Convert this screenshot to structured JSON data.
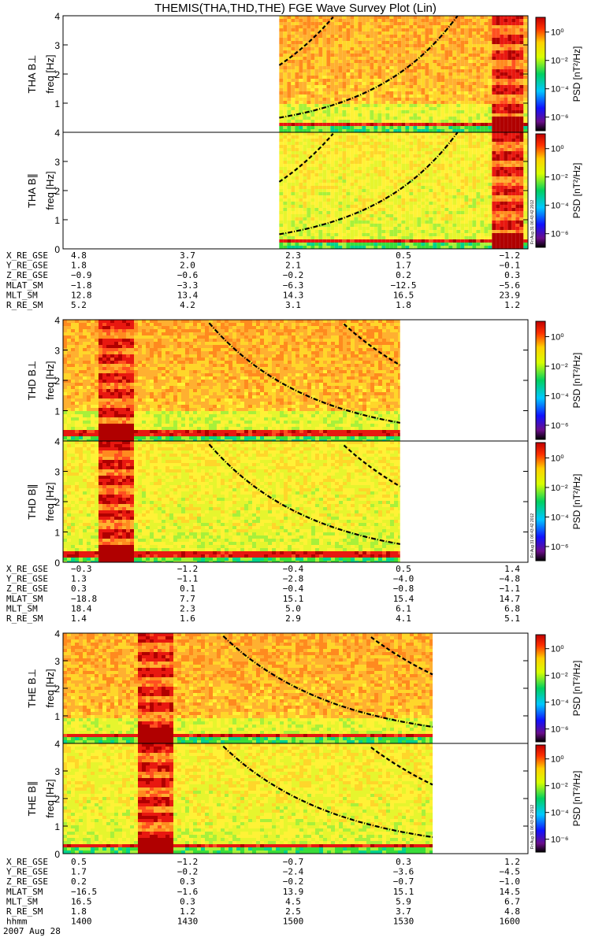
{
  "title": "THEMIS(THA,THD,THE) FGE Wave Survey Plot (Lin)",
  "colorbar": {
    "label": "PSD [nT²/Hz]",
    "ticks": [
      "10⁰",
      "10⁻²",
      "10⁻⁴",
      "10⁻⁶"
    ]
  },
  "ylabel_freq": "freq [Hz]",
  "freq_ticks": [
    "0",
    "1",
    "2",
    "3",
    "4"
  ],
  "stamp": "Fri Aug 31 06:43:42 2012",
  "footer": {
    "time_row_label": "hhmm",
    "time_ticks": [
      "1400",
      "1430",
      "1500",
      "1530",
      "1600"
    ],
    "date": "2007 Aug 28"
  },
  "chart_data": [
    {
      "probe": "THA",
      "panels": [
        {
          "label": "THA B⊥",
          "type": "heatmap",
          "ylim": [
            0,
            4
          ],
          "ylabel": "freq [Hz]",
          "data_start_frac": 0.465,
          "data_end_frac": 1.0
        },
        {
          "label": "THA B∥",
          "type": "heatmap",
          "ylim": [
            0,
            4
          ],
          "ylabel": "freq [Hz]",
          "data_start_frac": 0.465,
          "data_end_frac": 1.0
        }
      ],
      "ephemeris": [
        {
          "label": "X_RE_GSE",
          "values": [
            "4.8",
            "3.7",
            "2.3",
            "0.5",
            "−1.2"
          ]
        },
        {
          "label": "Y_RE_GSE",
          "values": [
            "1.8",
            "2.0",
            "2.1",
            "1.7",
            "−0.1"
          ]
        },
        {
          "label": "Z_RE_GSE",
          "values": [
            "−0.9",
            "−0.6",
            "−0.2",
            "0.2",
            "0.3"
          ]
        },
        {
          "label": "MLAT_SM",
          "values": [
            "−1.8",
            "−3.3",
            "−6.3",
            "−12.5",
            "−5.6"
          ]
        },
        {
          "label": "MLT_SM",
          "values": [
            "12.8",
            "13.4",
            "14.3",
            "16.5",
            "23.9"
          ]
        },
        {
          "label": "R_RE_SM",
          "values": [
            "5.2",
            "4.2",
            "3.1",
            "1.8",
            "1.2"
          ]
        }
      ]
    },
    {
      "probe": "THD",
      "panels": [
        {
          "label": "THD B⊥",
          "type": "heatmap",
          "ylim": [
            0,
            4
          ],
          "ylabel": "freq [Hz]",
          "data_start_frac": 0.0,
          "data_end_frac": 0.725
        },
        {
          "label": "THD B∥",
          "type": "heatmap",
          "ylim": [
            0,
            4
          ],
          "ylabel": "freq [Hz]",
          "data_start_frac": 0.0,
          "data_end_frac": 0.725
        }
      ],
      "ephemeris": [
        {
          "label": "X_RE_GSE",
          "values": [
            "−0.3",
            "−1.2",
            "−0.4",
            "0.5",
            "1.4"
          ]
        },
        {
          "label": "Y_RE_GSE",
          "values": [
            "1.3",
            "−1.1",
            "−2.8",
            "−4.0",
            "−4.8"
          ]
        },
        {
          "label": "Z_RE_GSE",
          "values": [
            "0.3",
            "0.1",
            "−0.4",
            "−0.8",
            "−1.1"
          ]
        },
        {
          "label": "MLAT_SM",
          "values": [
            "−18.8",
            "7.7",
            "15.1",
            "15.4",
            "14.7"
          ]
        },
        {
          "label": "MLT_SM",
          "values": [
            "18.4",
            "2.3",
            "5.0",
            "6.1",
            "6.8"
          ]
        },
        {
          "label": "R_RE_SM",
          "values": [
            "1.4",
            "1.6",
            "2.9",
            "4.1",
            "5.1"
          ]
        }
      ]
    },
    {
      "probe": "THE",
      "panels": [
        {
          "label": "THE B⊥",
          "type": "heatmap",
          "ylim": [
            0,
            4
          ],
          "ylabel": "freq [Hz]",
          "data_start_frac": 0.0,
          "data_end_frac": 0.795
        },
        {
          "label": "THE B∥",
          "type": "heatmap",
          "ylim": [
            0,
            4
          ],
          "ylabel": "freq [Hz]",
          "data_start_frac": 0.0,
          "data_end_frac": 0.795
        }
      ],
      "ephemeris": [
        {
          "label": "X_RE_GSE",
          "values": [
            "0.5",
            "−1.2",
            "−0.7",
            "0.3",
            "1.2"
          ]
        },
        {
          "label": "Y_RE_GSE",
          "values": [
            "1.7",
            "−0.2",
            "−2.4",
            "−3.6",
            "−4.5"
          ]
        },
        {
          "label": "Z_RE_GSE",
          "values": [
            "0.2",
            "0.3",
            "−0.2",
            "−0.7",
            "−1.0"
          ]
        },
        {
          "label": "MLAT_SM",
          "values": [
            "−16.5",
            "−1.6",
            "13.9",
            "15.1",
            "14.5"
          ]
        },
        {
          "label": "MLT_SM",
          "values": [
            "16.5",
            "0.3",
            "4.5",
            "5.9",
            "6.7"
          ]
        },
        {
          "label": "R_RE_SM",
          "values": [
            "1.8",
            "1.2",
            "2.5",
            "3.7",
            "4.8"
          ]
        }
      ]
    }
  ]
}
